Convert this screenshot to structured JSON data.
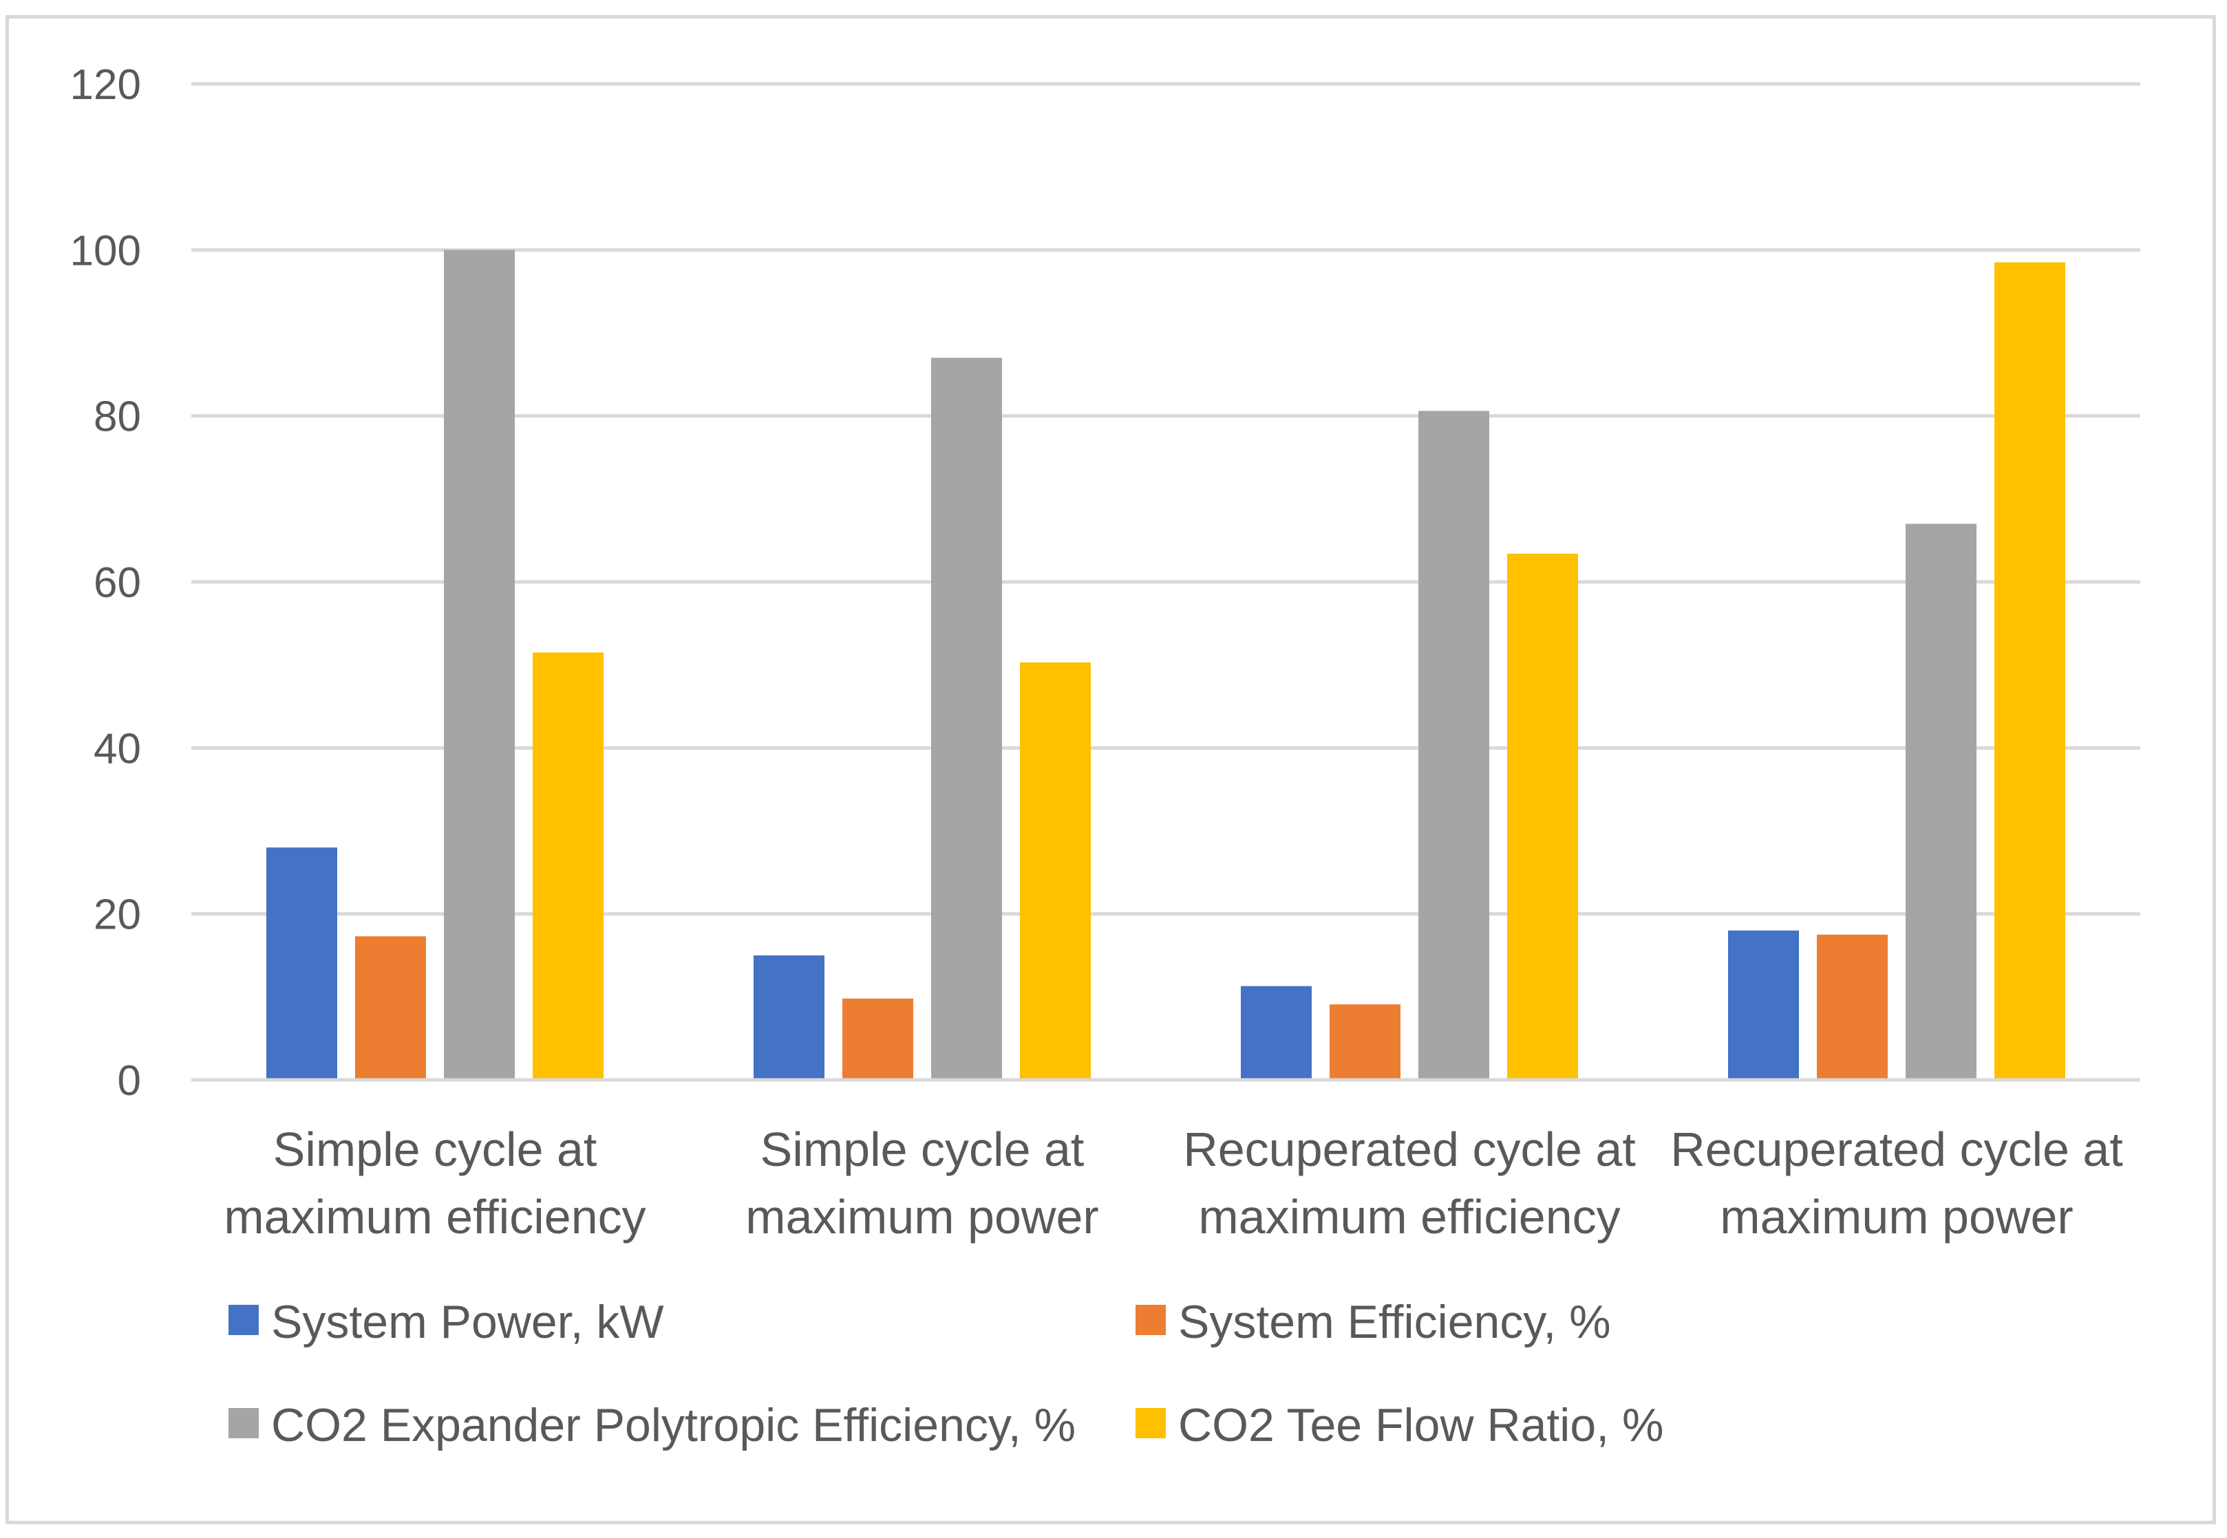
{
  "chart_data": {
    "type": "bar",
    "title": "",
    "xlabel": "",
    "ylabel": "",
    "ylim": [
      0,
      120
    ],
    "yticks": [
      0,
      20,
      40,
      60,
      80,
      100,
      120
    ],
    "grid": true,
    "legend_position": "bottom",
    "categories": [
      [
        "Simple cycle at",
        "maximum efficiency"
      ],
      [
        "Simple cycle at",
        "maximum power"
      ],
      [
        "Recuperated cycle at",
        "maximum efficiency"
      ],
      [
        "Recuperated cycle at",
        "maximum power"
      ]
    ],
    "series": [
      {
        "name": "System Power, kW",
        "color": "#4472C4",
        "values": [
          28,
          15,
          11.3,
          18
        ]
      },
      {
        "name": "System Efficiency, %",
        "color": "#ED7D31",
        "values": [
          17.3,
          9.8,
          9.1,
          17.5
        ]
      },
      {
        "name": "CO2 Expander Polytropic Efficiency, %",
        "color": "#A5A5A5",
        "values": [
          100,
          87,
          80.6,
          67
        ]
      },
      {
        "name": "CO2 Tee Flow Ratio, %",
        "color": "#FFC000",
        "values": [
          51.5,
          50.3,
          63.4,
          98.5
        ]
      }
    ]
  }
}
